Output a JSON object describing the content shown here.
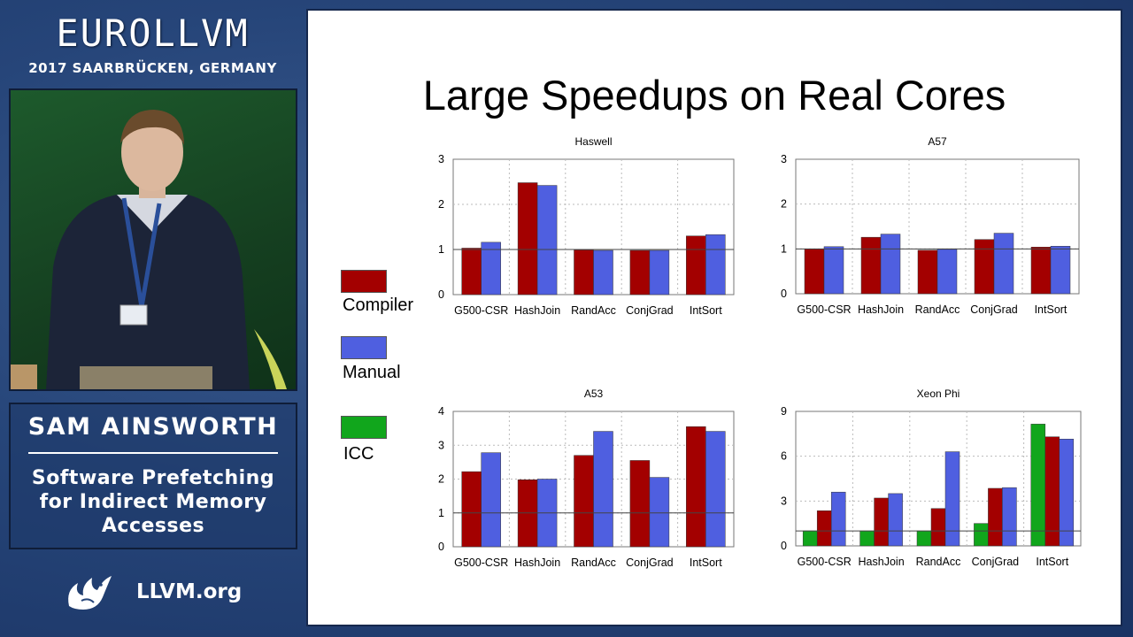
{
  "conference": {
    "name": "EUROLLVM",
    "subtitle": "2017 SAARBRÜCKEN, GERMANY"
  },
  "speaker": {
    "name": "SAM AINSWORTH",
    "talk_title": "Software Prefetching for Indirect Memory Accesses"
  },
  "footer": {
    "site": "LLVM.org"
  },
  "slide": {
    "title": "Large Speedups on Real Cores",
    "legend": [
      {
        "name": "Compiler",
        "color": "#a30000"
      },
      {
        "name": "Manual",
        "color": "#4f5fe0"
      },
      {
        "name": "ICC",
        "color": "#11a61c"
      }
    ]
  },
  "chart_data": [
    {
      "type": "bar",
      "title": "Haswell",
      "categories": [
        "G500-CSR",
        "HashJoin",
        "RandAcc",
        "ConjGrad",
        "IntSort"
      ],
      "series": [
        {
          "name": "Compiler",
          "values": [
            1.03,
            2.48,
            0.99,
            0.98,
            1.3
          ]
        },
        {
          "name": "Manual",
          "values": [
            1.16,
            2.42,
            0.98,
            0.98,
            1.33
          ]
        }
      ],
      "ylim": [
        0,
        3
      ],
      "yticks": [
        0,
        1,
        2,
        3
      ],
      "xlabel": "",
      "ylabel": "",
      "grid": true
    },
    {
      "type": "bar",
      "title": "A57",
      "categories": [
        "G500-CSR",
        "HashJoin",
        "RandAcc",
        "ConjGrad",
        "IntSort"
      ],
      "series": [
        {
          "name": "Compiler",
          "values": [
            1.0,
            1.26,
            0.97,
            1.21,
            1.04
          ]
        },
        {
          "name": "Manual",
          "values": [
            1.05,
            1.33,
            0.99,
            1.35,
            1.06
          ]
        }
      ],
      "ylim": [
        0,
        3
      ],
      "yticks": [
        0,
        1,
        2,
        3
      ],
      "xlabel": "",
      "ylabel": "",
      "grid": true
    },
    {
      "type": "bar",
      "title": "A53",
      "categories": [
        "G500-CSR",
        "HashJoin",
        "RandAcc",
        "ConjGrad",
        "IntSort"
      ],
      "series": [
        {
          "name": "Compiler",
          "values": [
            2.22,
            1.98,
            2.7,
            2.55,
            3.55
          ]
        },
        {
          "name": "Manual",
          "values": [
            2.78,
            2.0,
            3.41,
            2.05,
            3.41
          ]
        }
      ],
      "ylim": [
        0,
        4
      ],
      "yticks": [
        0,
        1,
        2,
        3,
        4
      ],
      "xlabel": "",
      "ylabel": "",
      "grid": true
    },
    {
      "type": "bar",
      "title": "Xeon Phi",
      "categories": [
        "G500-CSR",
        "HashJoin",
        "RandAcc",
        "ConjGrad",
        "IntSort"
      ],
      "series": [
        {
          "name": "ICC",
          "values": [
            1.0,
            1.0,
            1.0,
            1.5,
            8.15
          ]
        },
        {
          "name": "Compiler",
          "values": [
            2.35,
            3.2,
            2.5,
            3.85,
            7.3
          ]
        },
        {
          "name": "Manual",
          "values": [
            3.6,
            3.5,
            6.3,
            3.9,
            7.15
          ]
        }
      ],
      "ylim": [
        0,
        9
      ],
      "yticks": [
        0,
        3,
        6,
        9
      ],
      "xlabel": "",
      "ylabel": "",
      "grid": true
    }
  ]
}
